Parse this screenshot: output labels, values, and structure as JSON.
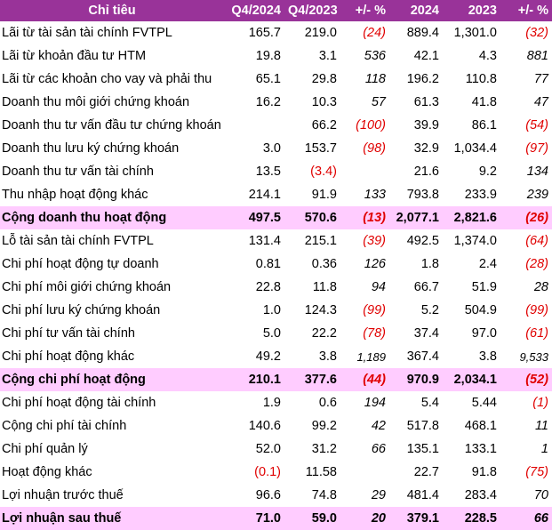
{
  "table": {
    "headers": [
      "Chỉ tiêu",
      "Q4/2024",
      "Q4/2023",
      "+/- %",
      "2024",
      "2023",
      "+/- %"
    ],
    "rows": [
      {
        "label": "Lãi từ tài sản tài chính FVTPL",
        "q4_2024": "165.7",
        "q4_2023": "219.0",
        "q_change": "(24)",
        "y2024": "889.4",
        "y2023": "1,301.0",
        "y_change": "(32)"
      },
      {
        "label": "Lãi từ khoản đầu tư HTM",
        "q4_2024": "19.8",
        "q4_2023": "3.1",
        "q_change": "536",
        "y2024": "42.1",
        "y2023": "4.3",
        "y_change": "881"
      },
      {
        "label": "Lãi từ các khoản cho vay và phải thu",
        "q4_2024": "65.1",
        "q4_2023": "29.8",
        "q_change": "118",
        "y2024": "196.2",
        "y2023": "110.8",
        "y_change": "77"
      },
      {
        "label": "Doanh thu môi giới chứng khoán",
        "q4_2024": "16.2",
        "q4_2023": "10.3",
        "q_change": "57",
        "y2024": "61.3",
        "y2023": "41.8",
        "y_change": "47"
      },
      {
        "label": "Doanh thu tư vấn đầu tư chứng khoán",
        "q4_2024": "",
        "q4_2023": "66.2",
        "q_change": "(100)",
        "y2024": "39.9",
        "y2023": "86.1",
        "y_change": "(54)"
      },
      {
        "label": "Doanh thu lưu ký chứng khoán",
        "q4_2024": "3.0",
        "q4_2023": "153.7",
        "q_change": "(98)",
        "y2024": "32.9",
        "y2023": "1,034.4",
        "y_change": "(97)"
      },
      {
        "label": "Doanh thu tư vấn tài chính",
        "q4_2024": "13.5",
        "q4_2023": "(3.4)",
        "q_change": "",
        "y2024": "21.6",
        "y2023": "9.2",
        "y_change": "134"
      },
      {
        "label": "Thu nhập hoạt động khác",
        "q4_2024": "214.1",
        "q4_2023": "91.9",
        "q_change": "133",
        "y2024": "793.8",
        "y2023": "233.9",
        "y_change": "239"
      },
      {
        "label": "Cộng doanh thu hoạt động",
        "q4_2024": "497.5",
        "q4_2023": "570.6",
        "q_change": "(13)",
        "y2024": "2,077.1",
        "y2023": "2,821.6",
        "y_change": "(26)",
        "total": true
      },
      {
        "label": "Lỗ tài sản tài chính FVTPL",
        "q4_2024": "131.4",
        "q4_2023": "215.1",
        "q_change": "(39)",
        "y2024": "492.5",
        "y2023": "1,374.0",
        "y_change": "(64)"
      },
      {
        "label": "Chi phí hoạt động tự doanh",
        "q4_2024": "0.81",
        "q4_2023": "0.36",
        "q_change": "126",
        "y2024": "1.8",
        "y2023": "2.4",
        "y_change": "(28)"
      },
      {
        "label": "Chi phí môi giới chứng khoán",
        "q4_2024": "22.8",
        "q4_2023": "11.8",
        "q_change": "94",
        "y2024": "66.7",
        "y2023": "51.9",
        "y_change": "28"
      },
      {
        "label": "Chi phí lưu ký chứng khoán",
        "q4_2024": "1.0",
        "q4_2023": "124.3",
        "q_change": "(99)",
        "y2024": "5.2",
        "y2023": "504.9",
        "y_change": "(99)"
      },
      {
        "label": "Chi phí tư vấn tài chính",
        "q4_2024": "5.0",
        "q4_2023": "22.2",
        "q_change": "(78)",
        "y2024": "37.4",
        "y2023": "97.0",
        "y_change": "(61)"
      },
      {
        "label": "Chi phí hoạt động khác",
        "q4_2024": "49.2",
        "q4_2023": "3.8",
        "q_change": "1,189",
        "y2024": "367.4",
        "y2023": "3.8",
        "y_change": "9,533",
        "small": true
      },
      {
        "label": "Cộng chi phí hoạt động",
        "q4_2024": "210.1",
        "q4_2023": "377.6",
        "q_change": "(44)",
        "y2024": "970.9",
        "y2023": "2,034.1",
        "y_change": "(52)",
        "total": true
      },
      {
        "label": "Chi phí hoạt động tài chính",
        "q4_2024": "1.9",
        "q4_2023": "0.6",
        "q_change": "194",
        "y2024": "5.4",
        "y2023": "5.44",
        "y_change": "(1)"
      },
      {
        "label": "Cộng chi phí tài chính",
        "q4_2024": "140.6",
        "q4_2023": "99.2",
        "q_change": "42",
        "y2024": "517.8",
        "y2023": "468.1",
        "y_change": "11"
      },
      {
        "label": "Chi phí quản lý",
        "q4_2024": "52.0",
        "q4_2023": "31.2",
        "q_change": "66",
        "y2024": "135.1",
        "y2023": "133.1",
        "y_change": "1"
      },
      {
        "label": "Hoạt động khác",
        "q4_2024": "(0.1)",
        "q4_2023": "11.58",
        "q_change": "",
        "y2024": "22.7",
        "y2023": "91.8",
        "y_change": "(75)"
      },
      {
        "label": "Lợi nhuận trước thuế",
        "q4_2024": "96.6",
        "q4_2023": "74.8",
        "q_change": "29",
        "y2024": "481.4",
        "y2023": "283.4",
        "y_change": "70"
      },
      {
        "label": "Lợi nhuận sau thuế",
        "q4_2024": "71.0",
        "q4_2023": "59.0",
        "q_change": "20",
        "y2024": "379.1",
        "y2023": "228.5",
        "y_change": "66",
        "total": true
      }
    ]
  },
  "colors": {
    "header_bg": "#993399",
    "header_text": "#ffffff",
    "total_bg": "#ffccff",
    "negative": "#e00000"
  }
}
